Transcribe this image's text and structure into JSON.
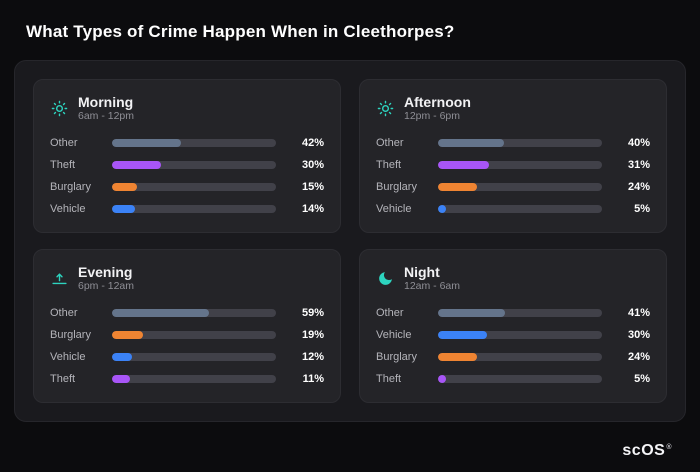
{
  "brand": {
    "text": "scOS",
    "mark": "®"
  },
  "colors": {
    "icon_accent": "#2dd4bf",
    "other": "#64748b",
    "theft": "#a855f7",
    "burglary": "#ef8432",
    "vehicle": "#3b82f6"
  },
  "chart_data": {
    "type": "bar",
    "title": "What Types of Crime Happen When in Cleethorpes?",
    "unit": "%",
    "value_range": [
      0,
      100
    ],
    "groups": [
      {
        "title": "Morning",
        "subtitle": "6am - 12pm",
        "icon": "sun-icon",
        "rows": [
          {
            "label": "Other",
            "value": 42,
            "pct": "42%",
            "color": "#64748b"
          },
          {
            "label": "Theft",
            "value": 30,
            "pct": "30%",
            "color": "#a855f7"
          },
          {
            "label": "Burglary",
            "value": 15,
            "pct": "15%",
            "color": "#ef8432"
          },
          {
            "label": "Vehicle",
            "value": 14,
            "pct": "14%",
            "color": "#3b82f6"
          }
        ]
      },
      {
        "title": "Afternoon",
        "subtitle": "12pm - 6pm",
        "icon": "sun-icon",
        "rows": [
          {
            "label": "Other",
            "value": 40,
            "pct": "40%",
            "color": "#64748b"
          },
          {
            "label": "Theft",
            "value": 31,
            "pct": "31%",
            "color": "#a855f7"
          },
          {
            "label": "Burglary",
            "value": 24,
            "pct": "24%",
            "color": "#ef8432"
          },
          {
            "label": "Vehicle",
            "value": 5,
            "pct": "5%",
            "color": "#3b82f6"
          }
        ]
      },
      {
        "title": "Evening",
        "subtitle": "6pm - 12am",
        "icon": "sunrise-icon",
        "rows": [
          {
            "label": "Other",
            "value": 59,
            "pct": "59%",
            "color": "#64748b"
          },
          {
            "label": "Burglary",
            "value": 19,
            "pct": "19%",
            "color": "#ef8432"
          },
          {
            "label": "Vehicle",
            "value": 12,
            "pct": "12%",
            "color": "#3b82f6"
          },
          {
            "label": "Theft",
            "value": 11,
            "pct": "11%",
            "color": "#a855f7"
          }
        ]
      },
      {
        "title": "Night",
        "subtitle": "12am - 6am",
        "icon": "moon-icon",
        "rows": [
          {
            "label": "Other",
            "value": 41,
            "pct": "41%",
            "color": "#64748b"
          },
          {
            "label": "Vehicle",
            "value": 30,
            "pct": "30%",
            "color": "#3b82f6"
          },
          {
            "label": "Burglary",
            "value": 24,
            "pct": "24%",
            "color": "#ef8432"
          },
          {
            "label": "Theft",
            "value": 5,
            "pct": "5%",
            "color": "#a855f7"
          }
        ]
      }
    ]
  }
}
